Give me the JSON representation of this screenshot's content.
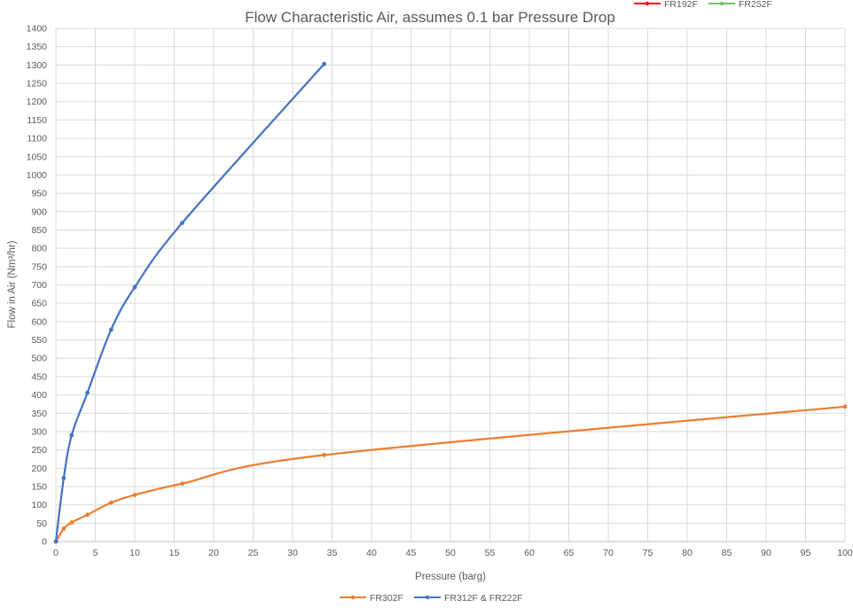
{
  "chart_data": {
    "type": "line",
    "title": "Flow Characteristic Air, assumes 0.1 bar Pressure Drop",
    "xlabel": "Pressure (barg)",
    "ylabel": "Flow in Air (Nm³/hr)",
    "xlim": [
      0,
      100
    ],
    "ylim": [
      0,
      1400
    ],
    "x_ticks": [
      0,
      5,
      10,
      15,
      20,
      25,
      30,
      35,
      40,
      45,
      50,
      55,
      60,
      65,
      70,
      75,
      80,
      85,
      90,
      95,
      100
    ],
    "y_ticks": [
      0,
      50,
      100,
      150,
      200,
      250,
      300,
      350,
      400,
      450,
      500,
      550,
      600,
      650,
      700,
      750,
      800,
      850,
      900,
      950,
      1000,
      1050,
      1100,
      1150,
      1200,
      1250,
      1300,
      1350,
      1400
    ],
    "grid": true,
    "smooth": true,
    "series": [
      {
        "name": "FR302F",
        "color": "#ED7D31",
        "x": [
          0,
          1,
          2,
          4,
          7,
          10,
          16,
          34,
          100
        ],
        "y": [
          0,
          35,
          52,
          73,
          106,
          127,
          158,
          236,
          368
        ]
      },
      {
        "name": "FR312F & FR222F",
        "color": "#4472C4",
        "x": [
          0,
          1,
          2,
          4,
          7,
          10,
          16,
          34
        ],
        "y": [
          0,
          173,
          290,
          406,
          578,
          694,
          869,
          1303
        ]
      }
    ],
    "legend_top": [
      {
        "name": "FR192F",
        "color": "#FF0000"
      },
      {
        "name": "FR252F",
        "color": "#70C26B"
      }
    ],
    "legend_bottom_placement": "bottom-center",
    "legend_top_placement": "top-right"
  }
}
